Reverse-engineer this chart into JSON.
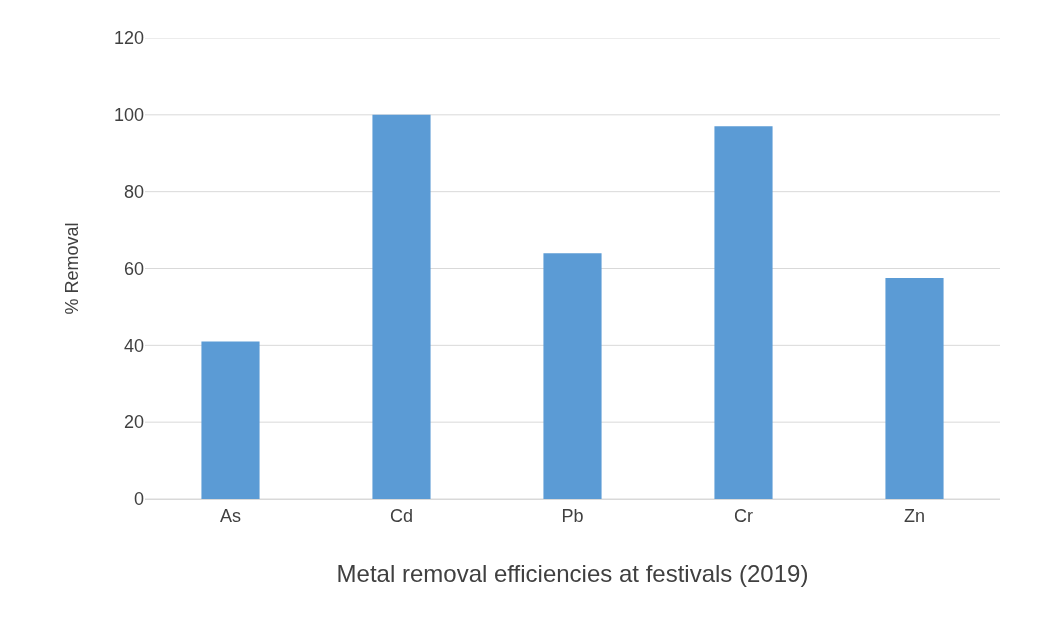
{
  "chart_data": {
    "type": "bar",
    "xlabel": "Metal removal efficiencies at festivals (2019)",
    "ylabel": "% Removal",
    "categories": [
      "As",
      "Cd",
      "Pb",
      "Cr",
      "Zn"
    ],
    "values": [
      41,
      100,
      64,
      97,
      57.5
    ],
    "color": "#5b9bd5",
    "ylim": [
      0,
      120
    ],
    "yticks": [
      0,
      20,
      40,
      60,
      80,
      100,
      120
    ],
    "grid": "y"
  }
}
